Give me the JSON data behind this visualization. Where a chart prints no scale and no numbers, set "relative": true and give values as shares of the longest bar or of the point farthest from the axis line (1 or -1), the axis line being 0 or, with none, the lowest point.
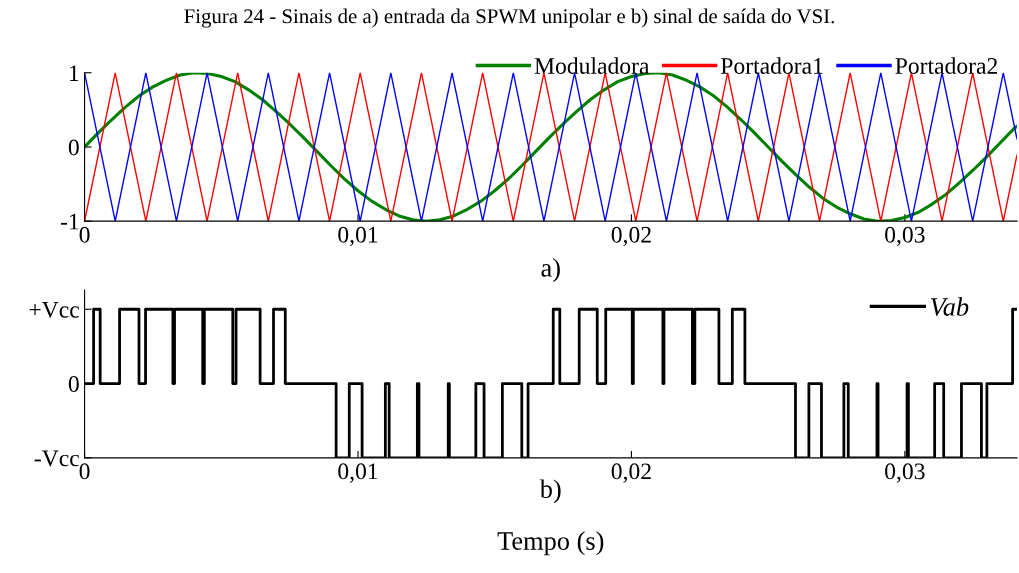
{
  "chart_data": [
    {
      "type": "line",
      "title": "Figura 24 - Sinais de a) entrada da SPWM unipolar e b) sinal de saída do VSI.",
      "annotations": [
        "a)"
      ],
      "xlim": [
        0,
        0.0341
      ],
      "ylim": [
        -1,
        1
      ],
      "xticks": [
        0,
        {
          "value": 0.01,
          "label": "0,01"
        },
        {
          "value": 0.02,
          "label": "0,02"
        },
        {
          "value": 0.03,
          "label": "0,03"
        }
      ],
      "yticks": [
        -1,
        0,
        1
      ],
      "grid": false,
      "legend": "top right",
      "series": [
        {
          "name": "Moduladora",
          "color": "#008000",
          "x": [
            0,
            0.0005,
            0.001,
            0.0015,
            0.002,
            0.0025,
            0.003,
            0.0035,
            0.004,
            0.0045,
            0.005,
            0.0055,
            0.006,
            0.0065,
            0.007,
            0.0075,
            0.008,
            0.0085,
            0.009,
            0.0095,
            0.01,
            0.0105,
            0.011,
            0.0115,
            0.012,
            0.0125,
            0.013,
            0.0135,
            0.014,
            0.0145,
            0.015,
            0.0155,
            0.016,
            0.0165,
            0.017,
            0.0175,
            0.018,
            0.0185,
            0.019,
            0.0195,
            0.02,
            0.0205,
            0.021,
            0.0215,
            0.022,
            0.0225,
            0.023,
            0.0235,
            0.024,
            0.0245,
            0.025,
            0.0255,
            0.026,
            0.0265,
            0.027,
            0.0275,
            0.028,
            0.0285,
            0.029,
            0.0295,
            0.03,
            0.0305,
            0.031,
            0.0315,
            0.032,
            0.0325,
            0.033,
            0.0335,
            0.034,
            0.0341
          ],
          "values": [
            0,
            0.19,
            0.37,
            0.54,
            0.69,
            0.81,
            0.9,
            0.97,
            1,
            0.99,
            0.95,
            0.88,
            0.77,
            0.64,
            0.48,
            0.31,
            0.13,
            -0.06,
            -0.25,
            -0.43,
            -0.59,
            -0.73,
            -0.84,
            -0.93,
            -0.98,
            -1,
            -0.98,
            -0.93,
            -0.84,
            -0.73,
            -0.59,
            -0.43,
            -0.25,
            -0.06,
            0.13,
            0.31,
            0.48,
            0.64,
            0.77,
            0.88,
            0.95,
            0.99,
            1,
            0.97,
            0.9,
            0.81,
            0.69,
            0.54,
            0.37,
            0.19,
            0,
            -0.19,
            -0.37,
            -0.54,
            -0.69,
            -0.81,
            -0.9,
            -0.97,
            -1,
            -0.99,
            -0.95,
            -0.88,
            -0.77,
            -0.64,
            -0.48,
            -0.31,
            -0.13,
            0.06,
            0.25,
            0.28
          ]
        },
        {
          "name": "Portadora1",
          "color": "#ff0000",
          "x": [
            0,
            0.00112,
            0.00224,
            0.00336,
            0.00448,
            0.0056,
            0.00672,
            0.00784,
            0.00896,
            0.01008,
            0.0112,
            0.01232,
            0.01344,
            0.01456,
            0.01568,
            0.0168,
            0.01792,
            0.01904,
            0.02016,
            0.02128,
            0.0224,
            0.02352,
            0.02464,
            0.02576,
            0.02688,
            0.028,
            0.02912,
            0.03024,
            0.03136,
            0.03248,
            0.0336,
            0.0341
          ],
          "values": [
            -1,
            1,
            -1,
            1,
            -1,
            1,
            -1,
            1,
            -1,
            1,
            -1,
            1,
            -1,
            1,
            -1,
            1,
            -1,
            1,
            -1,
            1,
            -1,
            1,
            -1,
            1,
            -1,
            1,
            -1,
            1,
            -1,
            1,
            -1,
            -0.11
          ]
        },
        {
          "name": "Portadora2",
          "color": "#0000ff",
          "x": [
            0,
            0.00112,
            0.00224,
            0.00336,
            0.00448,
            0.0056,
            0.00672,
            0.00784,
            0.00896,
            0.01008,
            0.0112,
            0.01232,
            0.01344,
            0.01456,
            0.01568,
            0.0168,
            0.01792,
            0.01904,
            0.02016,
            0.02128,
            0.0224,
            0.02352,
            0.02464,
            0.02576,
            0.02688,
            0.028,
            0.02912,
            0.03024,
            0.03136,
            0.03248,
            0.0336,
            0.0341
          ],
          "values": [
            1,
            -1,
            1,
            -1,
            1,
            -1,
            1,
            -1,
            1,
            -1,
            1,
            -1,
            1,
            -1,
            1,
            -1,
            1,
            -1,
            1,
            -1,
            1,
            -1,
            1,
            -1,
            1,
            -1,
            1,
            -1,
            1,
            -1,
            1,
            0.11
          ]
        }
      ]
    },
    {
      "type": "step",
      "xlabel": "Tempo (s)",
      "annotations": [
        "b)",
        "-Vcc",
        "0",
        "+Vcc"
      ],
      "relative": true,
      "xlim": [
        0,
        0.0341
      ],
      "xticks": [
        0,
        {
          "value": 0.01,
          "label": "0,01"
        },
        {
          "value": 0.02,
          "label": "0,02"
        },
        {
          "value": 0.03,
          "label": "0,03"
        }
      ],
      "grid": false,
      "legend": "top right",
      "series": [
        {
          "name": "Vab",
          "color": "#000000",
          "x": [
            0,
            0.00033,
            0.00057,
            0.00128,
            0.00199,
            0.00223,
            0.00323,
            0.00329,
            0.00432,
            0.00438,
            0.00542,
            0.00554,
            0.00642,
            0.00691,
            0.00734,
            0.0092,
            0.00968,
            0.01015,
            0.011,
            0.01114,
            0.01217,
            0.01223,
            0.0133,
            0.01334,
            0.01431,
            0.01461,
            0.01528,
            0.01599,
            0.01622,
            0.01714,
            0.01738,
            0.01809,
            0.01875,
            0.01906,
            0.02003,
            0.02007,
            0.02115,
            0.02119,
            0.02223,
            0.02232,
            0.0232,
            0.02369,
            0.02415,
            0.026,
            0.02649,
            0.02695,
            0.02777,
            0.02793,
            0.02898,
            0.02902,
            0.03008,
            0.03013,
            0.03109,
            0.03142,
            0.03207,
            0.0328,
            0.033,
            0.03394,
            0.0341
          ],
          "values": [
            0.5,
            1,
            0.5,
            1,
            0.5,
            1,
            0.5,
            1,
            0.5,
            1,
            0.5,
            1,
            0.5,
            1,
            0.5,
            0,
            0.5,
            0,
            0.5,
            0,
            0.5,
            0,
            0.5,
            0,
            0.5,
            0,
            0.5,
            0,
            0.5,
            1,
            0.5,
            1,
            0.5,
            1,
            0.5,
            1,
            0.5,
            1,
            0.5,
            1,
            0.5,
            1,
            0.5,
            0,
            0.5,
            0,
            0.5,
            0,
            0.5,
            0,
            0.5,
            0,
            0.5,
            0,
            0.5,
            0,
            0.5,
            1,
            1
          ]
        }
      ]
    }
  ]
}
